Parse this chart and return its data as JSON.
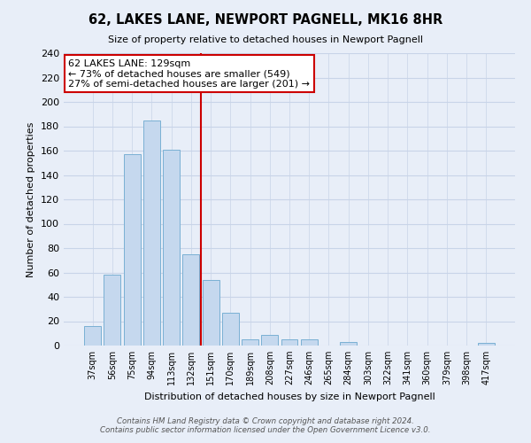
{
  "title": "62, LAKES LANE, NEWPORT PAGNELL, MK16 8HR",
  "subtitle": "Size of property relative to detached houses in Newport Pagnell",
  "bar_labels": [
    "37sqm",
    "56sqm",
    "75sqm",
    "94sqm",
    "113sqm",
    "132sqm",
    "151sqm",
    "170sqm",
    "189sqm",
    "208sqm",
    "227sqm",
    "246sqm",
    "265sqm",
    "284sqm",
    "303sqm",
    "322sqm",
    "341sqm",
    "360sqm",
    "379sqm",
    "398sqm",
    "417sqm"
  ],
  "bar_values": [
    16,
    58,
    157,
    185,
    161,
    75,
    54,
    27,
    5,
    9,
    5,
    5,
    0,
    3,
    0,
    0,
    0,
    0,
    0,
    0,
    2
  ],
  "bar_color": "#c5d8ee",
  "bar_edge_color": "#7ab0d4",
  "vline_index": 5,
  "vline_color": "#cc0000",
  "ylabel": "Number of detached properties",
  "xlabel": "Distribution of detached houses by size in Newport Pagnell",
  "ylim": [
    0,
    240
  ],
  "yticks": [
    0,
    20,
    40,
    60,
    80,
    100,
    120,
    140,
    160,
    180,
    200,
    220,
    240
  ],
  "annotation_title": "62 LAKES LANE: 129sqm",
  "annotation_line1": "← 73% of detached houses are smaller (549)",
  "annotation_line2": "27% of semi-detached houses are larger (201) →",
  "annotation_box_color": "#ffffff",
  "annotation_box_edge": "#cc0000",
  "footnote1": "Contains HM Land Registry data © Crown copyright and database right 2024.",
  "footnote2": "Contains public sector information licensed under the Open Government Licence v3.0.",
  "bg_color": "#e8eef8",
  "plot_bg_color": "#e8eef8",
  "grid_color": "#c8d4e8"
}
